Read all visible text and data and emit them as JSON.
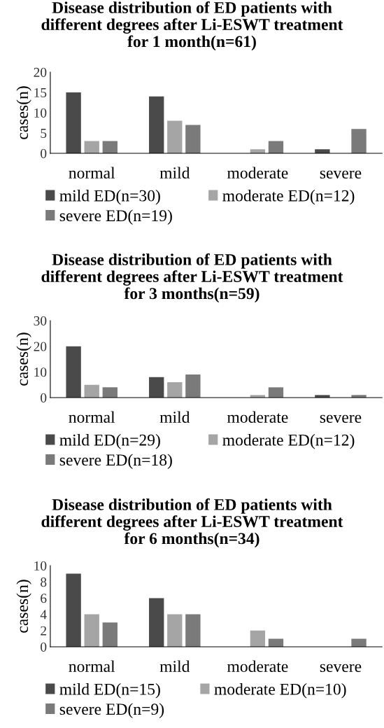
{
  "chart_data": [
    {
      "type": "bar",
      "title": "Disease distribution of ED patients with different degrees after Li-ESWT treatment for 1 month(n=61)",
      "ylabel": "cases(n)",
      "categories": [
        "normal",
        "mild",
        "moderate",
        "severe"
      ],
      "series": [
        {
          "name": "mild ED(n=30)",
          "color": "#4a4a4a",
          "values": [
            15,
            14,
            0,
            1
          ]
        },
        {
          "name": "moderate ED(n=12)",
          "color": "#a5a5a5",
          "values": [
            3,
            8,
            1,
            0
          ]
        },
        {
          "name": "severe ED(n=19)",
          "color": "#7a7a7a",
          "values": [
            3,
            7,
            3,
            6
          ]
        }
      ],
      "ylim": [
        0,
        20
      ],
      "yticks": [
        0,
        5,
        10,
        15,
        20
      ],
      "grid": false,
      "legend": "bottom"
    },
    {
      "type": "bar",
      "title": "Disease distribution of ED patients with different degrees after Li-ESWT treatment for 3 months(n=59)",
      "ylabel": "cases(n)",
      "categories": [
        "normal",
        "mild",
        "moderate",
        "severe"
      ],
      "series": [
        {
          "name": "mild ED(n=29)",
          "color": "#4a4a4a",
          "values": [
            20,
            8,
            0,
            1
          ]
        },
        {
          "name": "moderate ED(n=12)",
          "color": "#a5a5a5",
          "values": [
            5,
            6,
            1,
            0
          ]
        },
        {
          "name": "severe ED(n=18)",
          "color": "#7a7a7a",
          "values": [
            4,
            9,
            4,
            1
          ]
        }
      ],
      "ylim": [
        0,
        30
      ],
      "yticks": [
        0,
        10,
        20,
        30
      ],
      "grid": false,
      "legend": "bottom"
    },
    {
      "type": "bar",
      "title": "Disease distribution of ED patients with different degrees after Li-ESWT treatment for 6 months(n=34)",
      "ylabel": "cases(n)",
      "categories": [
        "normal",
        "mild",
        "moderate",
        "severe"
      ],
      "series": [
        {
          "name": "mild ED(n=15)",
          "color": "#4a4a4a",
          "values": [
            9,
            6,
            0,
            0
          ]
        },
        {
          "name": "moderate ED(n=10)",
          "color": "#a5a5a5",
          "values": [
            4,
            4,
            2,
            0
          ]
        },
        {
          "name": "severe ED(n=9)",
          "color": "#7a7a7a",
          "values": [
            3,
            4,
            1,
            1
          ]
        }
      ],
      "ylim": [
        0,
        10
      ],
      "yticks": [
        0,
        2,
        4,
        6,
        8,
        10
      ],
      "grid": false,
      "legend": "bottom"
    }
  ]
}
